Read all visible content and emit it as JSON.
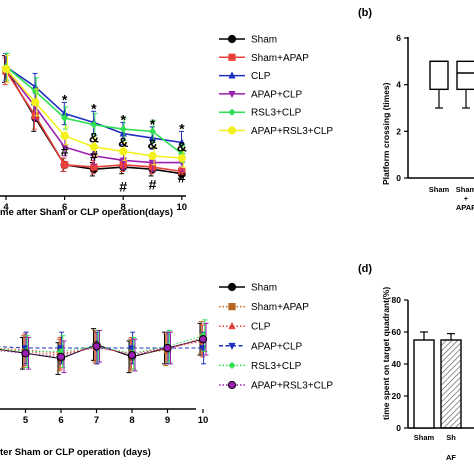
{
  "chart_data": [
    {
      "id": "a",
      "type": "line",
      "panel_label": "",
      "xlabel": "me after Sham or CLP operation(days)",
      "ylabel": "",
      "x": [
        4,
        5,
        6,
        7,
        8,
        9,
        10
      ],
      "xticks": [
        "4",
        "6",
        "8",
        "10"
      ],
      "ylim": [
        0,
        70
      ],
      "series": [
        {
          "name": "Sham",
          "color": "#000000",
          "marker": "circle",
          "line": "solid",
          "values": [
            57,
            35,
            14,
            12,
            13,
            12,
            10
          ],
          "err": [
            6,
            6,
            3,
            3,
            3,
            3,
            2
          ]
        },
        {
          "name": "Sham+APAP",
          "color": "#e8413c",
          "marker": "square",
          "line": "solid",
          "values": [
            56,
            36,
            14,
            13,
            14,
            13,
            11
          ],
          "err": [
            6,
            6,
            3,
            3,
            3,
            3,
            2
          ]
        },
        {
          "name": "CLP",
          "color": "#1f2fc0",
          "marker": "triangle",
          "line": "solid",
          "values": [
            58,
            49,
            37,
            33,
            28,
            26,
            24
          ],
          "err": [
            6,
            6,
            5,
            5,
            5,
            5,
            5
          ]
        },
        {
          "name": "APAP+CLP",
          "color": "#9b1fb0",
          "marker": "triangle-down",
          "line": "solid",
          "values": [
            57,
            40,
            22,
            18,
            16,
            15,
            15
          ],
          "err": [
            6,
            6,
            4,
            4,
            4,
            4,
            4
          ]
        },
        {
          "name": "RSL3+CLP",
          "color": "#2ee052",
          "marker": "diamond",
          "line": "solid",
          "values": [
            58,
            47,
            35,
            32,
            30,
            29,
            19
          ],
          "err": [
            6,
            6,
            5,
            5,
            5,
            5,
            4
          ]
        },
        {
          "name": "APAP+RSL3+CLP",
          "color": "#f2f21a",
          "marker": "circle",
          "line": "solid",
          "values": [
            57,
            42,
            27,
            22,
            20,
            18,
            17
          ],
          "err": [
            6,
            6,
            4,
            4,
            4,
            4,
            4
          ]
        }
      ],
      "annotations": [
        {
          "text": "*",
          "x": 6,
          "y": 41
        },
        {
          "text": "*",
          "x": 7,
          "y": 37
        },
        {
          "text": "*",
          "x": 8,
          "y": 32
        },
        {
          "text": "*",
          "x": 9,
          "y": 30
        },
        {
          "text": "*",
          "x": 10,
          "y": 28
        },
        {
          "text": "&",
          "x": 7,
          "y": 24
        },
        {
          "text": "&",
          "x": 8,
          "y": 22
        },
        {
          "text": "&",
          "x": 9,
          "y": 21
        },
        {
          "text": "&",
          "x": 10,
          "y": 20
        },
        {
          "text": "#",
          "x": 6,
          "y": 18
        },
        {
          "text": "#",
          "x": 7,
          "y": 16
        },
        {
          "text": "#",
          "x": 8,
          "y": 2
        },
        {
          "text": "#",
          "x": 9,
          "y": 3
        },
        {
          "text": "#",
          "x": 10,
          "y": 6
        }
      ]
    },
    {
      "id": "b",
      "type": "box",
      "panel_label": "(b)",
      "ylabel": "Platform crossing (times)",
      "yticks": [
        "0",
        "2",
        "4",
        "6"
      ],
      "ylim": [
        0,
        6
      ],
      "categories": [
        "Sham",
        "Sham\n+\nAPAP"
      ],
      "boxes": [
        {
          "min": 3,
          "q1": 3.8,
          "median": 5,
          "q3": 5,
          "max": 5
        },
        {
          "min": 3,
          "q1": 3.8,
          "median": 4.5,
          "q3": 5,
          "max": 5
        }
      ]
    },
    {
      "id": "c",
      "type": "line",
      "panel_label": "",
      "xlabel": "ter Sham or CLP operation (days)",
      "ylabel": "",
      "x": [
        4,
        5,
        6,
        7,
        8,
        9,
        10
      ],
      "xticks": [
        "5",
        "6",
        "7",
        "8",
        "9",
        "10"
      ],
      "ylim": [
        0,
        100
      ],
      "series": [
        {
          "name": "Sham",
          "color": "#000000",
          "marker": "circle",
          "line": "solid",
          "values": [
            50,
            47,
            44,
            52,
            45,
            50,
            55
          ],
          "err": [
            9,
            9,
            9,
            9,
            9,
            9,
            9
          ]
        },
        {
          "name": "Sham+APAP",
          "color": "#b5651d",
          "marker": "square",
          "line": "dotted",
          "values": [
            49,
            48,
            46,
            51,
            46,
            49,
            56
          ],
          "err": [
            9,
            9,
            9,
            9,
            9,
            9,
            9
          ]
        },
        {
          "name": "CLP",
          "color": "#e8413c",
          "marker": "triangle",
          "line": "dotted",
          "values": [
            50,
            49,
            47,
            50,
            47,
            50,
            54
          ],
          "err": [
            9,
            9,
            9,
            9,
            9,
            9,
            9
          ]
        },
        {
          "name": "APAP+CLP",
          "color": "#1f2fc0",
          "marker": "triangle-down",
          "line": "dashed",
          "values": [
            51,
            50,
            50,
            50,
            50,
            50,
            50
          ],
          "err": [
            9,
            9,
            9,
            9,
            9,
            9,
            9
          ]
        },
        {
          "name": "RSL3+CLP",
          "color": "#2ee052",
          "marker": "diamond",
          "line": "dotted",
          "values": [
            50,
            48,
            48,
            51,
            47,
            51,
            57
          ],
          "err": [
            9,
            9,
            9,
            9,
            9,
            9,
            9
          ]
        },
        {
          "name": "APAP+RSL3+CLP",
          "color": "#9b1fb0",
          "marker": "circle-filled",
          "line": "dotted",
          "values": [
            49,
            47,
            45,
            51,
            46,
            50,
            55
          ],
          "err": [
            9,
            9,
            9,
            9,
            9,
            9,
            9
          ]
        }
      ]
    },
    {
      "id": "d",
      "type": "bar",
      "panel_label": "(d)",
      "ylabel": "time spent on target quadrant(%)",
      "yticks": [
        "0",
        "20",
        "40",
        "60",
        "80"
      ],
      "ylim": [
        0,
        80
      ],
      "categories": [
        "Sham",
        "Sh"
      ],
      "sublabel": "AF",
      "values": [
        55,
        55
      ],
      "err": [
        5,
        4
      ],
      "patterns": [
        "none",
        "hatch"
      ]
    }
  ]
}
